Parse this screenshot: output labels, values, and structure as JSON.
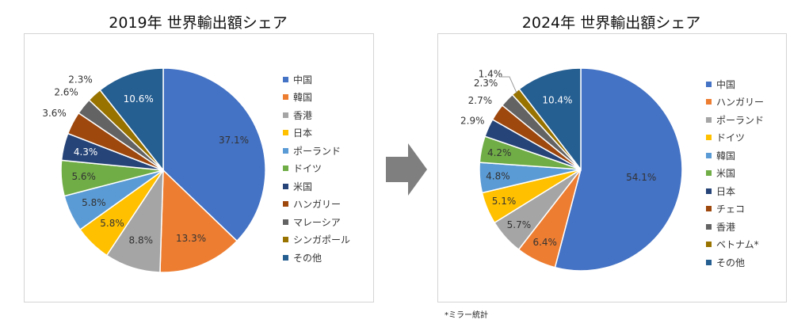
{
  "chart_data": [
    {
      "type": "pie",
      "title": "2019年 世界輸出額シェア",
      "unit": "%",
      "categories": [
        "中国",
        "韓国",
        "香港",
        "日本",
        "ポーランド",
        "ドイツ",
        "米国",
        "ハンガリー",
        "マレーシア",
        "シンガポール",
        "その他"
      ],
      "values": [
        37.1,
        13.3,
        8.8,
        5.8,
        5.8,
        5.6,
        4.3,
        3.6,
        2.6,
        2.3,
        10.6
      ],
      "labels": [
        "37.1%",
        "13.3%",
        "8.8%",
        "5.8%",
        "5.8%",
        "5.6%",
        "4.3%",
        "3.6%",
        "2.6%",
        "2.3%",
        "10.6%"
      ],
      "colors": [
        "#4472c4",
        "#ed7d31",
        "#a5a5a5",
        "#ffc000",
        "#5b9bd5",
        "#70ad47",
        "#264478",
        "#9e480e",
        "#636363",
        "#997300",
        "#255e91"
      ],
      "legend_position": "right"
    },
    {
      "type": "pie",
      "title": "2024年 世界輸出額シェア",
      "unit": "%",
      "categories": [
        "中国",
        "ハンガリー",
        "ポーランド",
        "ドイツ",
        "韓国",
        "米国",
        "日本",
        "チェコ",
        "香港",
        "ベトナム*",
        "その他"
      ],
      "values": [
        54.1,
        6.4,
        5.7,
        5.1,
        4.8,
        4.2,
        2.9,
        2.7,
        2.3,
        1.4,
        10.4
      ],
      "labels": [
        "54.1%",
        "6.4%",
        "5.7%",
        "5.1%",
        "4.8%",
        "4.2%",
        "2.9%",
        "2.7%",
        "2.3%",
        "1.4%",
        "10.4%"
      ],
      "colors": [
        "#4472c4",
        "#ed7d31",
        "#a5a5a5",
        "#ffc000",
        "#5b9bd5",
        "#70ad47",
        "#264478",
        "#9e480e",
        "#636363",
        "#997300",
        "#255e91"
      ],
      "legend_position": "right"
    }
  ],
  "footnote": "*ミラー統計"
}
